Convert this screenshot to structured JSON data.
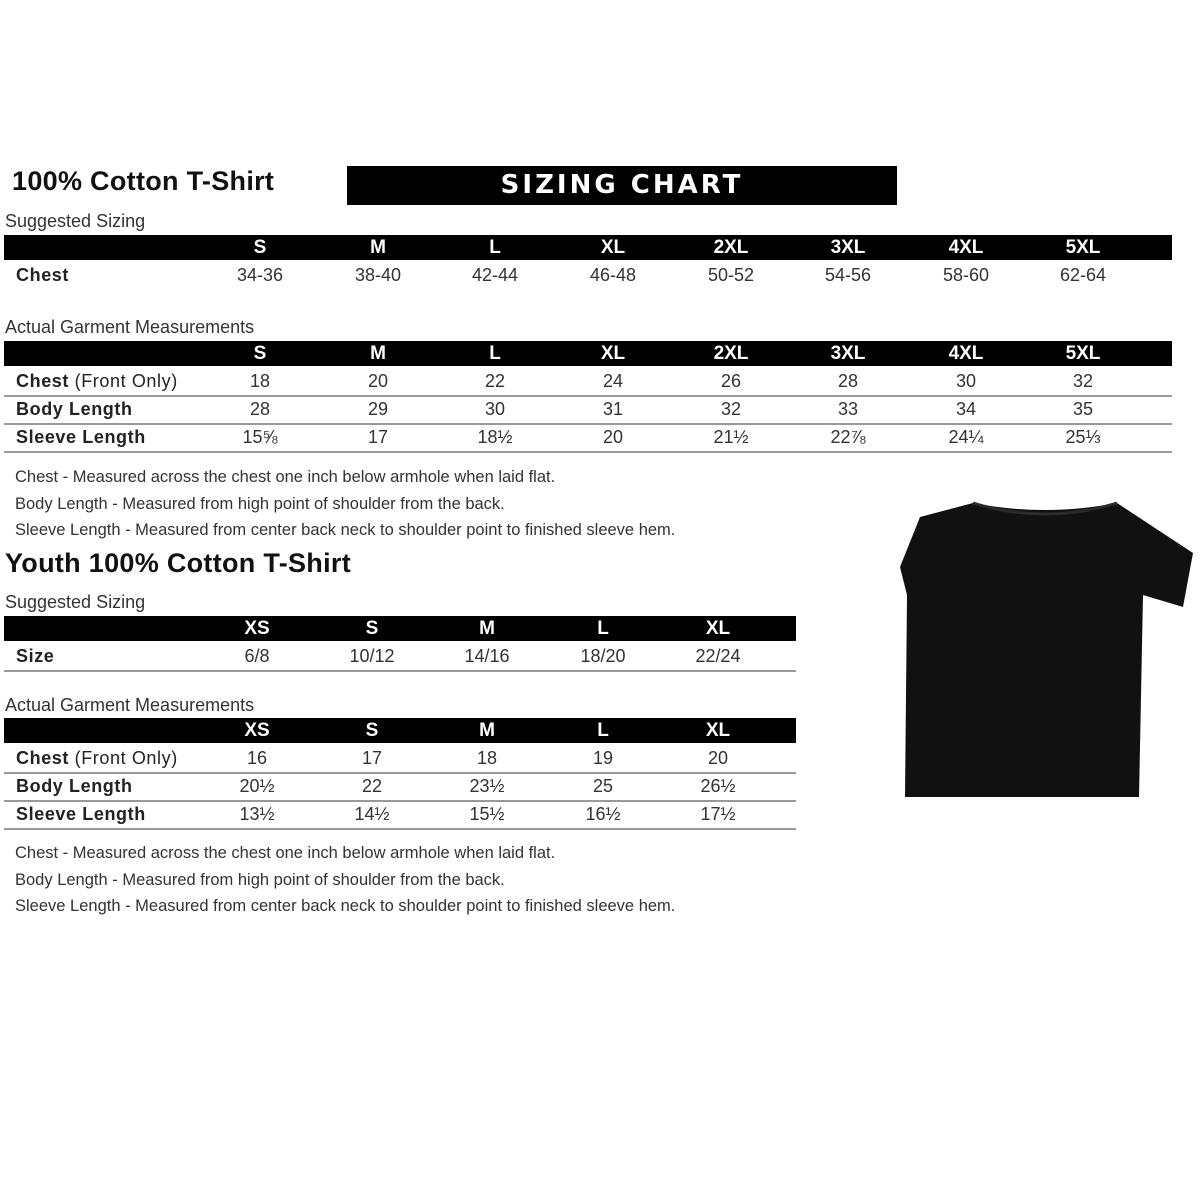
{
  "adult": {
    "title": "100% Cotton T-Shirt",
    "banner": "SIZING CHART",
    "suggested_label": "Suggested Sizing",
    "sizes": [
      "S",
      "M",
      "L",
      "XL",
      "2XL",
      "3XL",
      "4XL",
      "5XL"
    ],
    "suggested_rows": [
      {
        "label": "Chest",
        "label_extra": "",
        "values": [
          "34-36",
          "38-40",
          "42-44",
          "46-48",
          "50-52",
          "54-56",
          "58-60",
          "62-64"
        ]
      }
    ],
    "actual_label": "Actual Garment Measurements",
    "actual_rows": [
      {
        "label": "Chest",
        "label_extra": " (Front Only)",
        "values": [
          "18",
          "20",
          "22",
          "24",
          "26",
          "28",
          "30",
          "32"
        ]
      },
      {
        "label": "Body Length",
        "label_extra": "",
        "values": [
          "28",
          "29",
          "30",
          "31",
          "32",
          "33",
          "34",
          "35"
        ]
      },
      {
        "label": "Sleeve Length",
        "label_extra": "",
        "values": [
          "15⅝",
          "17",
          "18½",
          "20",
          "21½",
          "22⅞",
          "24¼",
          "25⅓"
        ]
      }
    ],
    "notes": [
      "Chest - Measured across the chest one inch below armhole when laid flat.",
      "Body Length - Measured from high point of shoulder from the back.",
      "Sleeve Length - Measured from center back neck to shoulder point to finished sleeve hem."
    ]
  },
  "youth": {
    "title": "Youth 100% Cotton T-Shirt",
    "suggested_label": "Suggested Sizing",
    "sizes": [
      "XS",
      "S",
      "M",
      "L",
      "XL"
    ],
    "suggested_rows": [
      {
        "label": "Size",
        "label_extra": "",
        "values": [
          "6/8",
          "10/12",
          "14/16",
          "18/20",
          "22/24"
        ]
      }
    ],
    "actual_label": "Actual Garment Measurements",
    "actual_rows": [
      {
        "label": "Chest",
        "label_extra": " (Front Only)",
        "values": [
          "16",
          "17",
          "18",
          "19",
          "20"
        ]
      },
      {
        "label": "Body Length",
        "label_extra": "",
        "values": [
          "20½",
          "22",
          "23½",
          "25",
          "26½"
        ]
      },
      {
        "label": "Sleeve Length",
        "label_extra": "",
        "values": [
          "13½",
          "14½",
          "15½",
          "16½",
          "17½"
        ]
      }
    ],
    "notes": [
      "Chest - Measured across the chest one inch below armhole when laid flat.",
      "Body Length - Measured from high point of shoulder from the back.",
      "Sleeve Length - Measured from center back neck to shoulder point to finished sleeve hem."
    ]
  },
  "image": {
    "icon": "black-tshirt-icon",
    "color": "#111111"
  }
}
